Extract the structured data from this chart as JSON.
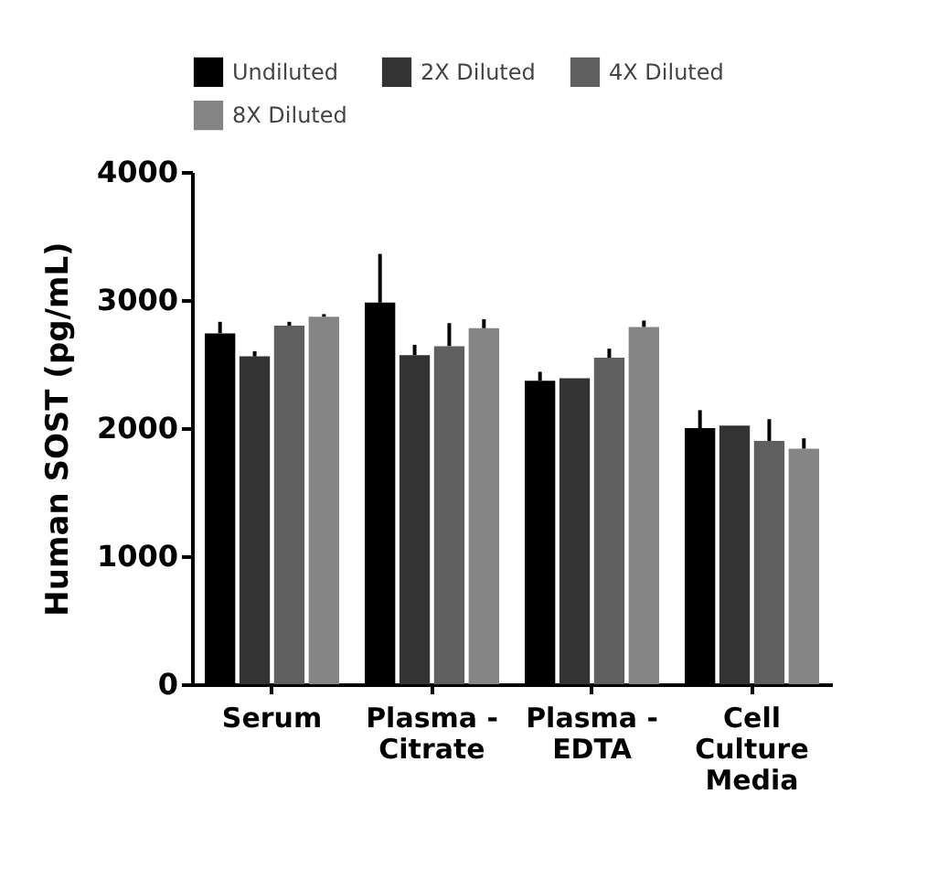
{
  "chart_data": {
    "type": "bar",
    "ylabel": "Human SOST (pg/mL)",
    "categories": [
      "Serum",
      "Plasma - Citrate",
      "Plasma - EDTA",
      "Cell Culture Media"
    ],
    "series": [
      {
        "name": "Undiluted",
        "color": "#000000",
        "values": [
          2740,
          2980,
          2370,
          2000
        ],
        "errors": [
          [
            2740,
            2830
          ],
          [
            2980,
            3360
          ],
          [
            2370,
            2440
          ],
          [
            2000,
            2140
          ]
        ]
      },
      {
        "name": "2X Diluted",
        "color": "#333333",
        "values": [
          2560,
          2570,
          2390,
          2020
        ],
        "errors": [
          [
            2560,
            2600
          ],
          [
            2570,
            2650
          ],
          [
            2390,
            2390
          ],
          [
            2020,
            2020
          ]
        ]
      },
      {
        "name": "4X Diluted",
        "color": "#5f5f5f",
        "values": [
          2800,
          2640,
          2550,
          1900
        ],
        "errors": [
          [
            2800,
            2830
          ],
          [
            2640,
            2820
          ],
          [
            2550,
            2620
          ],
          [
            1900,
            2070
          ]
        ]
      },
      {
        "name": "8X Diluted",
        "color": "#858585",
        "values": [
          2870,
          2780,
          2790,
          1840
        ],
        "errors": [
          [
            2870,
            2890
          ],
          [
            2780,
            2850
          ],
          [
            2790,
            2840
          ],
          [
            1840,
            1920
          ]
        ]
      }
    ],
    "ylim": [
      0,
      4000
    ],
    "yticks": [
      0,
      1000,
      2000,
      3000,
      4000
    ],
    "grid": false,
    "legend": "top"
  }
}
